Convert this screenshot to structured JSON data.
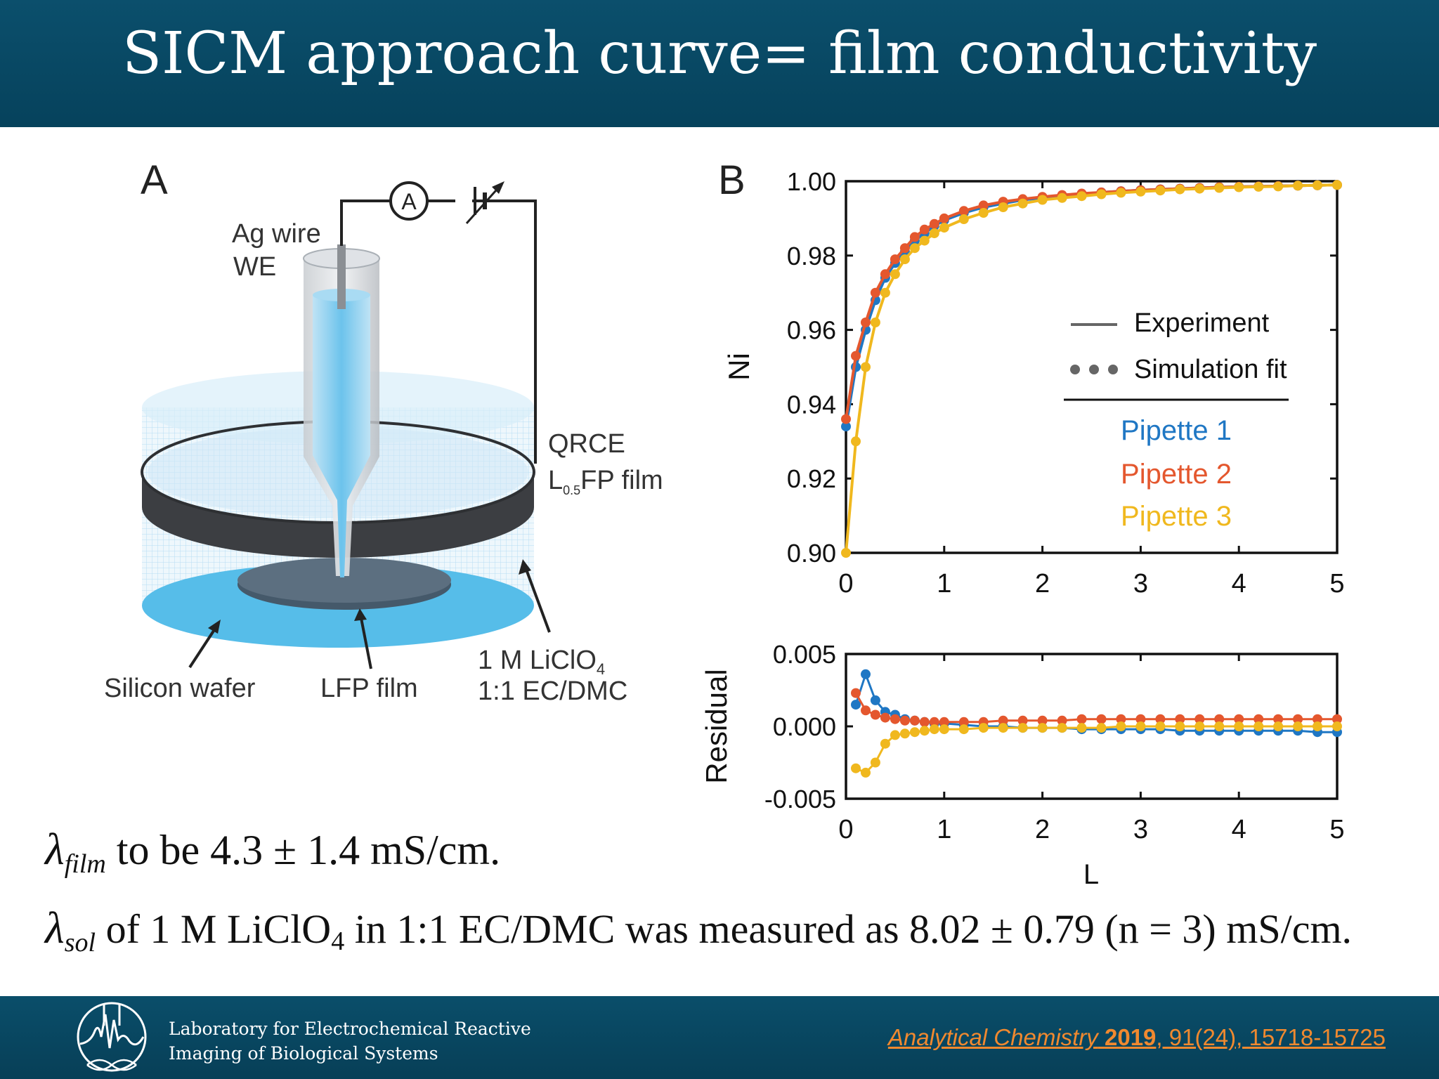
{
  "slide": {
    "title": "SICM approach curve= film conductivity"
  },
  "panel_a": {
    "label": "A",
    "ammeter": "A",
    "ag_wire": [
      "Ag wire",
      "WE"
    ],
    "qrce": "QRCE",
    "l05fp_film": {
      "pre": "L",
      "sub": "0.5",
      "post": "FP film"
    },
    "silicon_wafer": "Silicon wafer",
    "lfp_film": "LFP film",
    "electrolyte": {
      "line1_pre": "1 M LiClO",
      "line1_sub": "4",
      "line2": "1:1 EC/DMC"
    }
  },
  "panel_b": {
    "label": "B"
  },
  "chart_data": [
    {
      "type": "line",
      "id": "approach-curve",
      "xlabel": "",
      "ylabel": "Ni",
      "xlim": [
        0,
        5
      ],
      "ylim": [
        0.9,
        1.0
      ],
      "xticks": [
        "0",
        "1",
        "2",
        "3",
        "4",
        "5"
      ],
      "yticks": [
        "0.90",
        "0.92",
        "0.94",
        "0.96",
        "0.98",
        "1.00"
      ],
      "legend": {
        "placement": "right",
        "style_entries": [
          {
            "label": "Experiment",
            "style": "line"
          },
          {
            "label": "Simulation fit",
            "style": "dots"
          }
        ],
        "series_entries": [
          "Pipette 1",
          "Pipette 2",
          "Pipette 3"
        ]
      },
      "x": [
        0.0,
        0.1,
        0.2,
        0.3,
        0.4,
        0.5,
        0.6,
        0.7,
        0.8,
        0.9,
        1.0,
        1.2,
        1.4,
        1.6,
        1.8,
        2.0,
        2.2,
        2.4,
        2.6,
        2.8,
        3.0,
        3.2,
        3.4,
        3.6,
        3.8,
        4.0,
        4.2,
        4.4,
        4.6,
        4.8,
        5.0
      ],
      "series": [
        {
          "name": "Pipette 1",
          "color": "#1f77c4",
          "values": [
            0.934,
            0.95,
            0.96,
            0.968,
            0.974,
            0.978,
            0.981,
            0.984,
            0.986,
            0.988,
            0.9895,
            0.9915,
            0.993,
            0.994,
            0.995,
            0.9955,
            0.996,
            0.9965,
            0.997,
            0.9973,
            0.9976,
            0.9978,
            0.998,
            0.9982,
            0.9984,
            0.9985,
            0.9986,
            0.9987,
            0.9988,
            0.9989,
            0.999
          ]
        },
        {
          "name": "Pipette 2",
          "color": "#e4572e",
          "values": [
            0.936,
            0.953,
            0.962,
            0.97,
            0.975,
            0.979,
            0.982,
            0.985,
            0.987,
            0.9885,
            0.99,
            0.992,
            0.9935,
            0.9945,
            0.9952,
            0.9958,
            0.9963,
            0.9967,
            0.997,
            0.9973,
            0.9976,
            0.9978,
            0.998,
            0.9982,
            0.9984,
            0.9985,
            0.9986,
            0.9987,
            0.9988,
            0.9989,
            0.999
          ]
        },
        {
          "name": "Pipette 3",
          "color": "#f0b81e",
          "values": [
            0.9,
            0.93,
            0.95,
            0.962,
            0.97,
            0.975,
            0.979,
            0.982,
            0.984,
            0.986,
            0.9875,
            0.9898,
            0.9915,
            0.993,
            0.994,
            0.995,
            0.9955,
            0.996,
            0.9965,
            0.9969,
            0.9972,
            0.9975,
            0.9978,
            0.998,
            0.9982,
            0.9984,
            0.9985,
            0.9986,
            0.9988,
            0.9989,
            0.999
          ]
        }
      ]
    },
    {
      "type": "scatter",
      "id": "residual",
      "xlabel": "L",
      "ylabel": "Residual",
      "xlim": [
        0,
        5
      ],
      "ylim": [
        -0.005,
        0.005
      ],
      "xticks": [
        "0",
        "1",
        "2",
        "3",
        "4",
        "5"
      ],
      "yticks": [
        "-0.005",
        "0.000",
        "0.005"
      ],
      "x": [
        0.1,
        0.2,
        0.3,
        0.4,
        0.5,
        0.6,
        0.7,
        0.8,
        0.9,
        1.0,
        1.2,
        1.4,
        1.6,
        1.8,
        2.0,
        2.2,
        2.4,
        2.6,
        2.8,
        3.0,
        3.2,
        3.4,
        3.6,
        3.8,
        4.0,
        4.2,
        4.4,
        4.6,
        4.8,
        5.0
      ],
      "series": [
        {
          "name": "Pipette 1",
          "color": "#1f77c4",
          "values": [
            0.0015,
            0.0036,
            0.0018,
            0.001,
            0.0008,
            0.0005,
            0.0004,
            0.0003,
            0.0002,
            0.0002,
            0.0001,
            0.0,
            0.0,
            -0.0001,
            -0.0001,
            -0.0001,
            -0.0002,
            -0.0002,
            -0.0002,
            -0.0002,
            -0.0002,
            -0.0003,
            -0.0003,
            -0.0003,
            -0.0003,
            -0.0003,
            -0.0003,
            -0.0003,
            -0.0004,
            -0.0004
          ]
        },
        {
          "name": "Pipette 2",
          "color": "#e4572e",
          "values": [
            0.0023,
            0.0011,
            0.0008,
            0.0006,
            0.0005,
            0.0004,
            0.0004,
            0.0003,
            0.0003,
            0.0003,
            0.0003,
            0.0003,
            0.0004,
            0.0004,
            0.0004,
            0.0004,
            0.0005,
            0.0005,
            0.0005,
            0.0005,
            0.0005,
            0.0005,
            0.0005,
            0.0005,
            0.0005,
            0.0005,
            0.0005,
            0.0005,
            0.0005,
            0.0005
          ]
        },
        {
          "name": "Pipette 3",
          "color": "#f0b81e",
          "values": [
            -0.0029,
            -0.0032,
            -0.0025,
            -0.0012,
            -0.0006,
            -0.0005,
            -0.0004,
            -0.0003,
            -0.0002,
            -0.0002,
            -0.0002,
            -0.0001,
            -0.0001,
            -0.0001,
            -0.0001,
            -0.0001,
            -0.0001,
            -0.0001,
            0.0,
            0.0,
            0.0,
            0.0,
            0.0,
            0.0,
            0.0,
            0.0,
            0.0,
            0.0,
            0.0,
            0.0
          ]
        }
      ]
    }
  ],
  "equations": {
    "film": {
      "symbol": "λ",
      "sub": "film",
      "text": " to be 4.3 ± 1.4 mS/cm."
    },
    "sol": {
      "symbol": "λ",
      "sub": "sol",
      "text_pre": " of 1 M LiClO",
      "text_sub": "4",
      "text_post": " in 1:1 EC/DMC was measured as 8.02 ± 0.79 (n = 3) mS/cm."
    }
  },
  "footer": {
    "lab_line1": "Laboratory for Electrochemical Reactive",
    "lab_line2": "Imaging of Biological Systems",
    "citation_journal": "Analytical Chemistry",
    "citation_year": "2019",
    "citation_rest": ", 91(24), 15718-15725"
  },
  "colors": {
    "header_bg": "#0b4f6c",
    "footer_bg": "#0a4e6a",
    "citation": "#f0892f",
    "pipette_1": "#1f77c4",
    "pipette_2": "#e4572e",
    "pipette_3": "#f0b81e"
  }
}
